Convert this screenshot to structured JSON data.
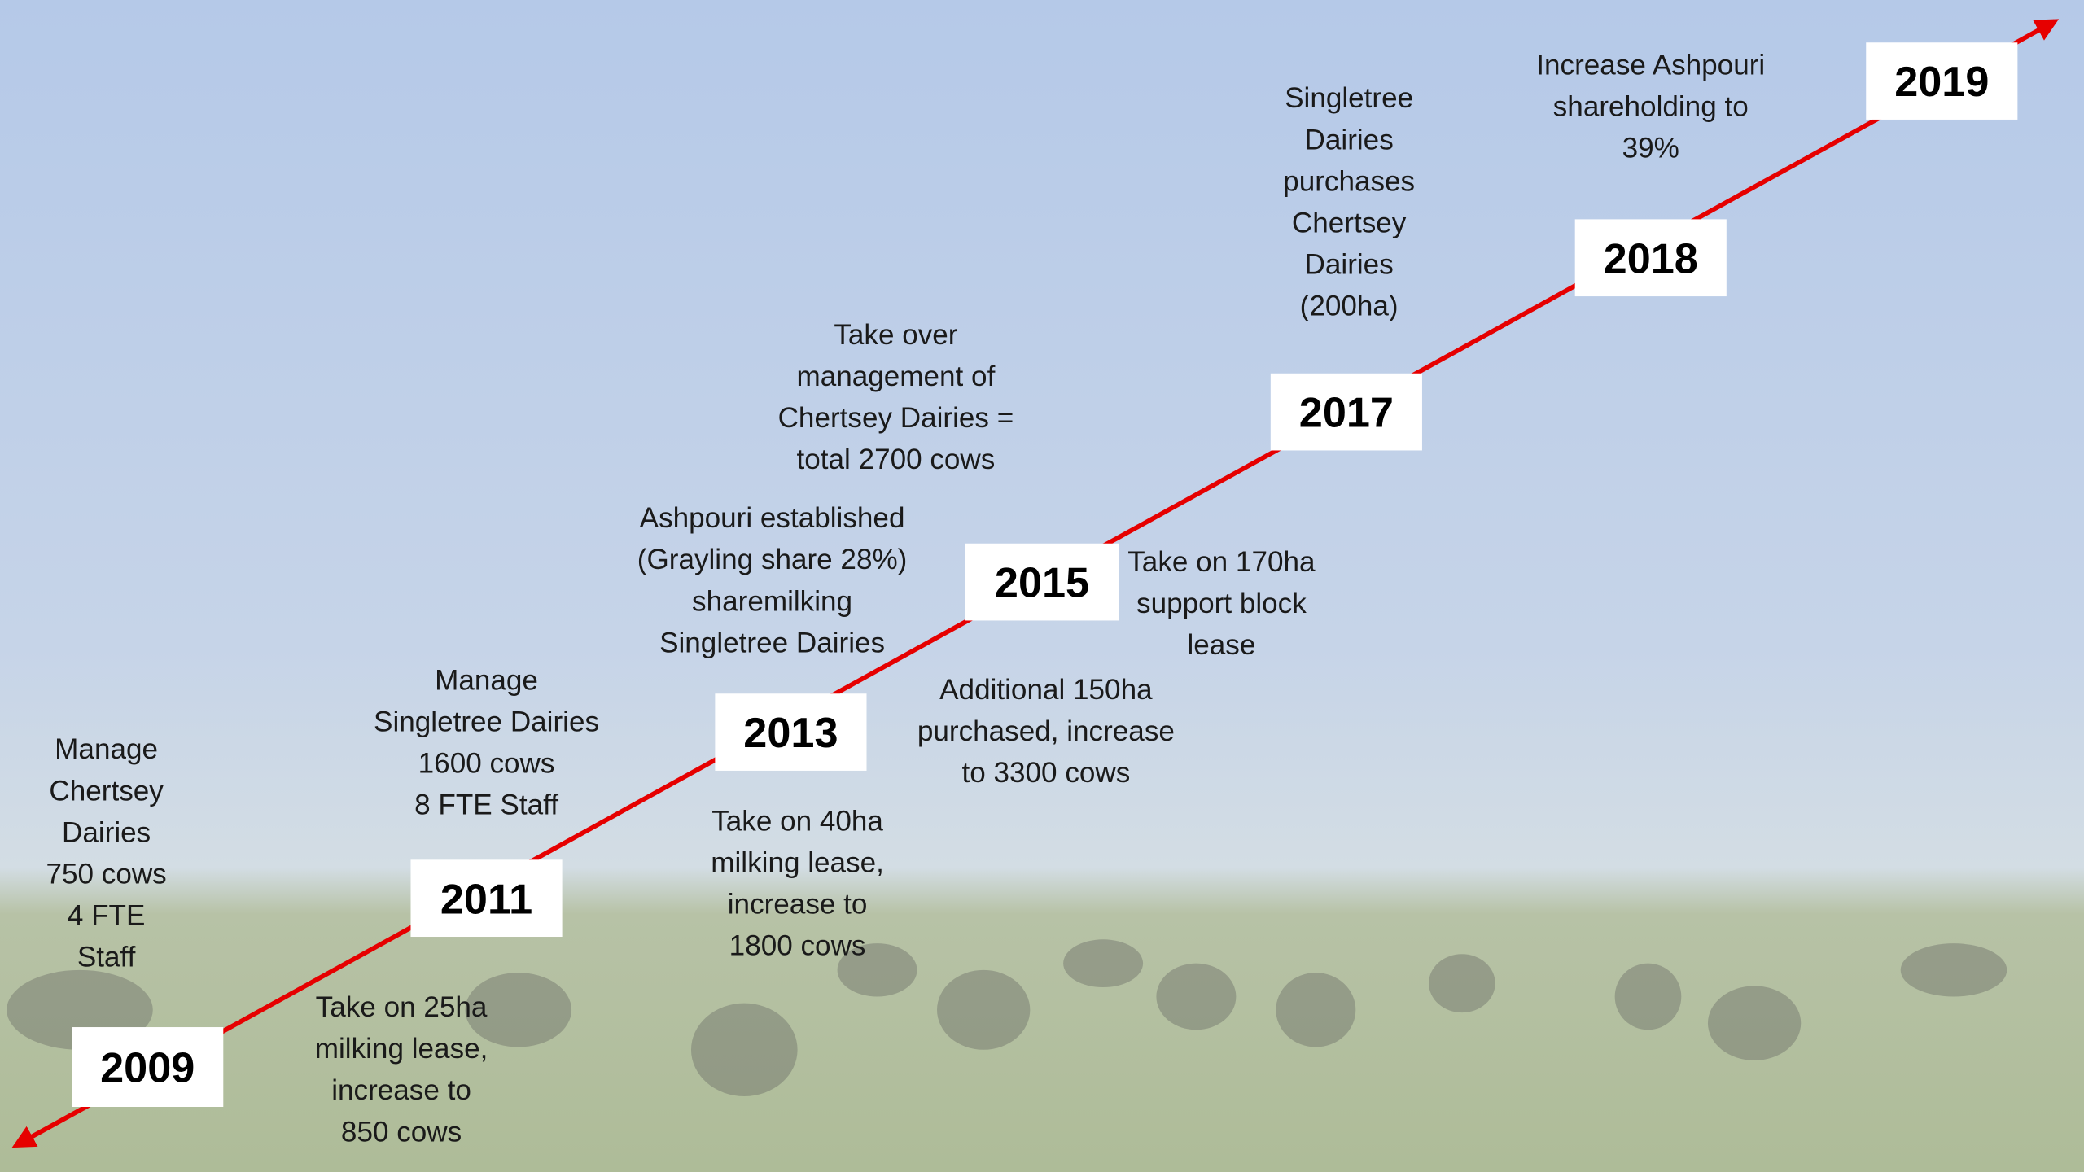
{
  "milestones": [
    {
      "year": "2009",
      "notes": [
        [
          "Manage",
          "Chertsey",
          "Dairies",
          "750 cows",
          "4 FTE",
          "Staff"
        ]
      ]
    },
    {
      "year": "2011",
      "notes": [
        [
          "Manage",
          "Singletree Dairies",
          "1600 cows",
          "8 FTE Staff"
        ],
        [
          "Take on 25ha",
          "milking lease,",
          "increase to",
          "850 cows"
        ]
      ]
    },
    {
      "year": "2013",
      "notes": [
        [
          "Ashpouri established",
          "(Grayling share 28%)",
          "sharemilking",
          "Singletree Dairies"
        ],
        [
          "Take on 40ha",
          "milking lease,",
          "increase to",
          "1800 cows"
        ]
      ]
    },
    {
      "year": "2015",
      "notes": [
        [
          "Take over",
          "management of",
          "Chertsey Dairies =",
          "total 2700 cows"
        ],
        [
          "Take on 170ha",
          "support block",
          "lease"
        ],
        [
          "Additional 150ha",
          "purchased, increase",
          "to 3300 cows"
        ]
      ]
    },
    {
      "year": "2017",
      "notes": [
        [
          "Singletree",
          "Dairies",
          "purchases",
          "Chertsey",
          "Dairies",
          "(200ha)"
        ]
      ]
    },
    {
      "year": "2018",
      "notes": [
        [
          "Increase Ashpouri",
          "shareholding to",
          "39%"
        ]
      ]
    },
    {
      "year": "2019",
      "notes": []
    }
  ]
}
